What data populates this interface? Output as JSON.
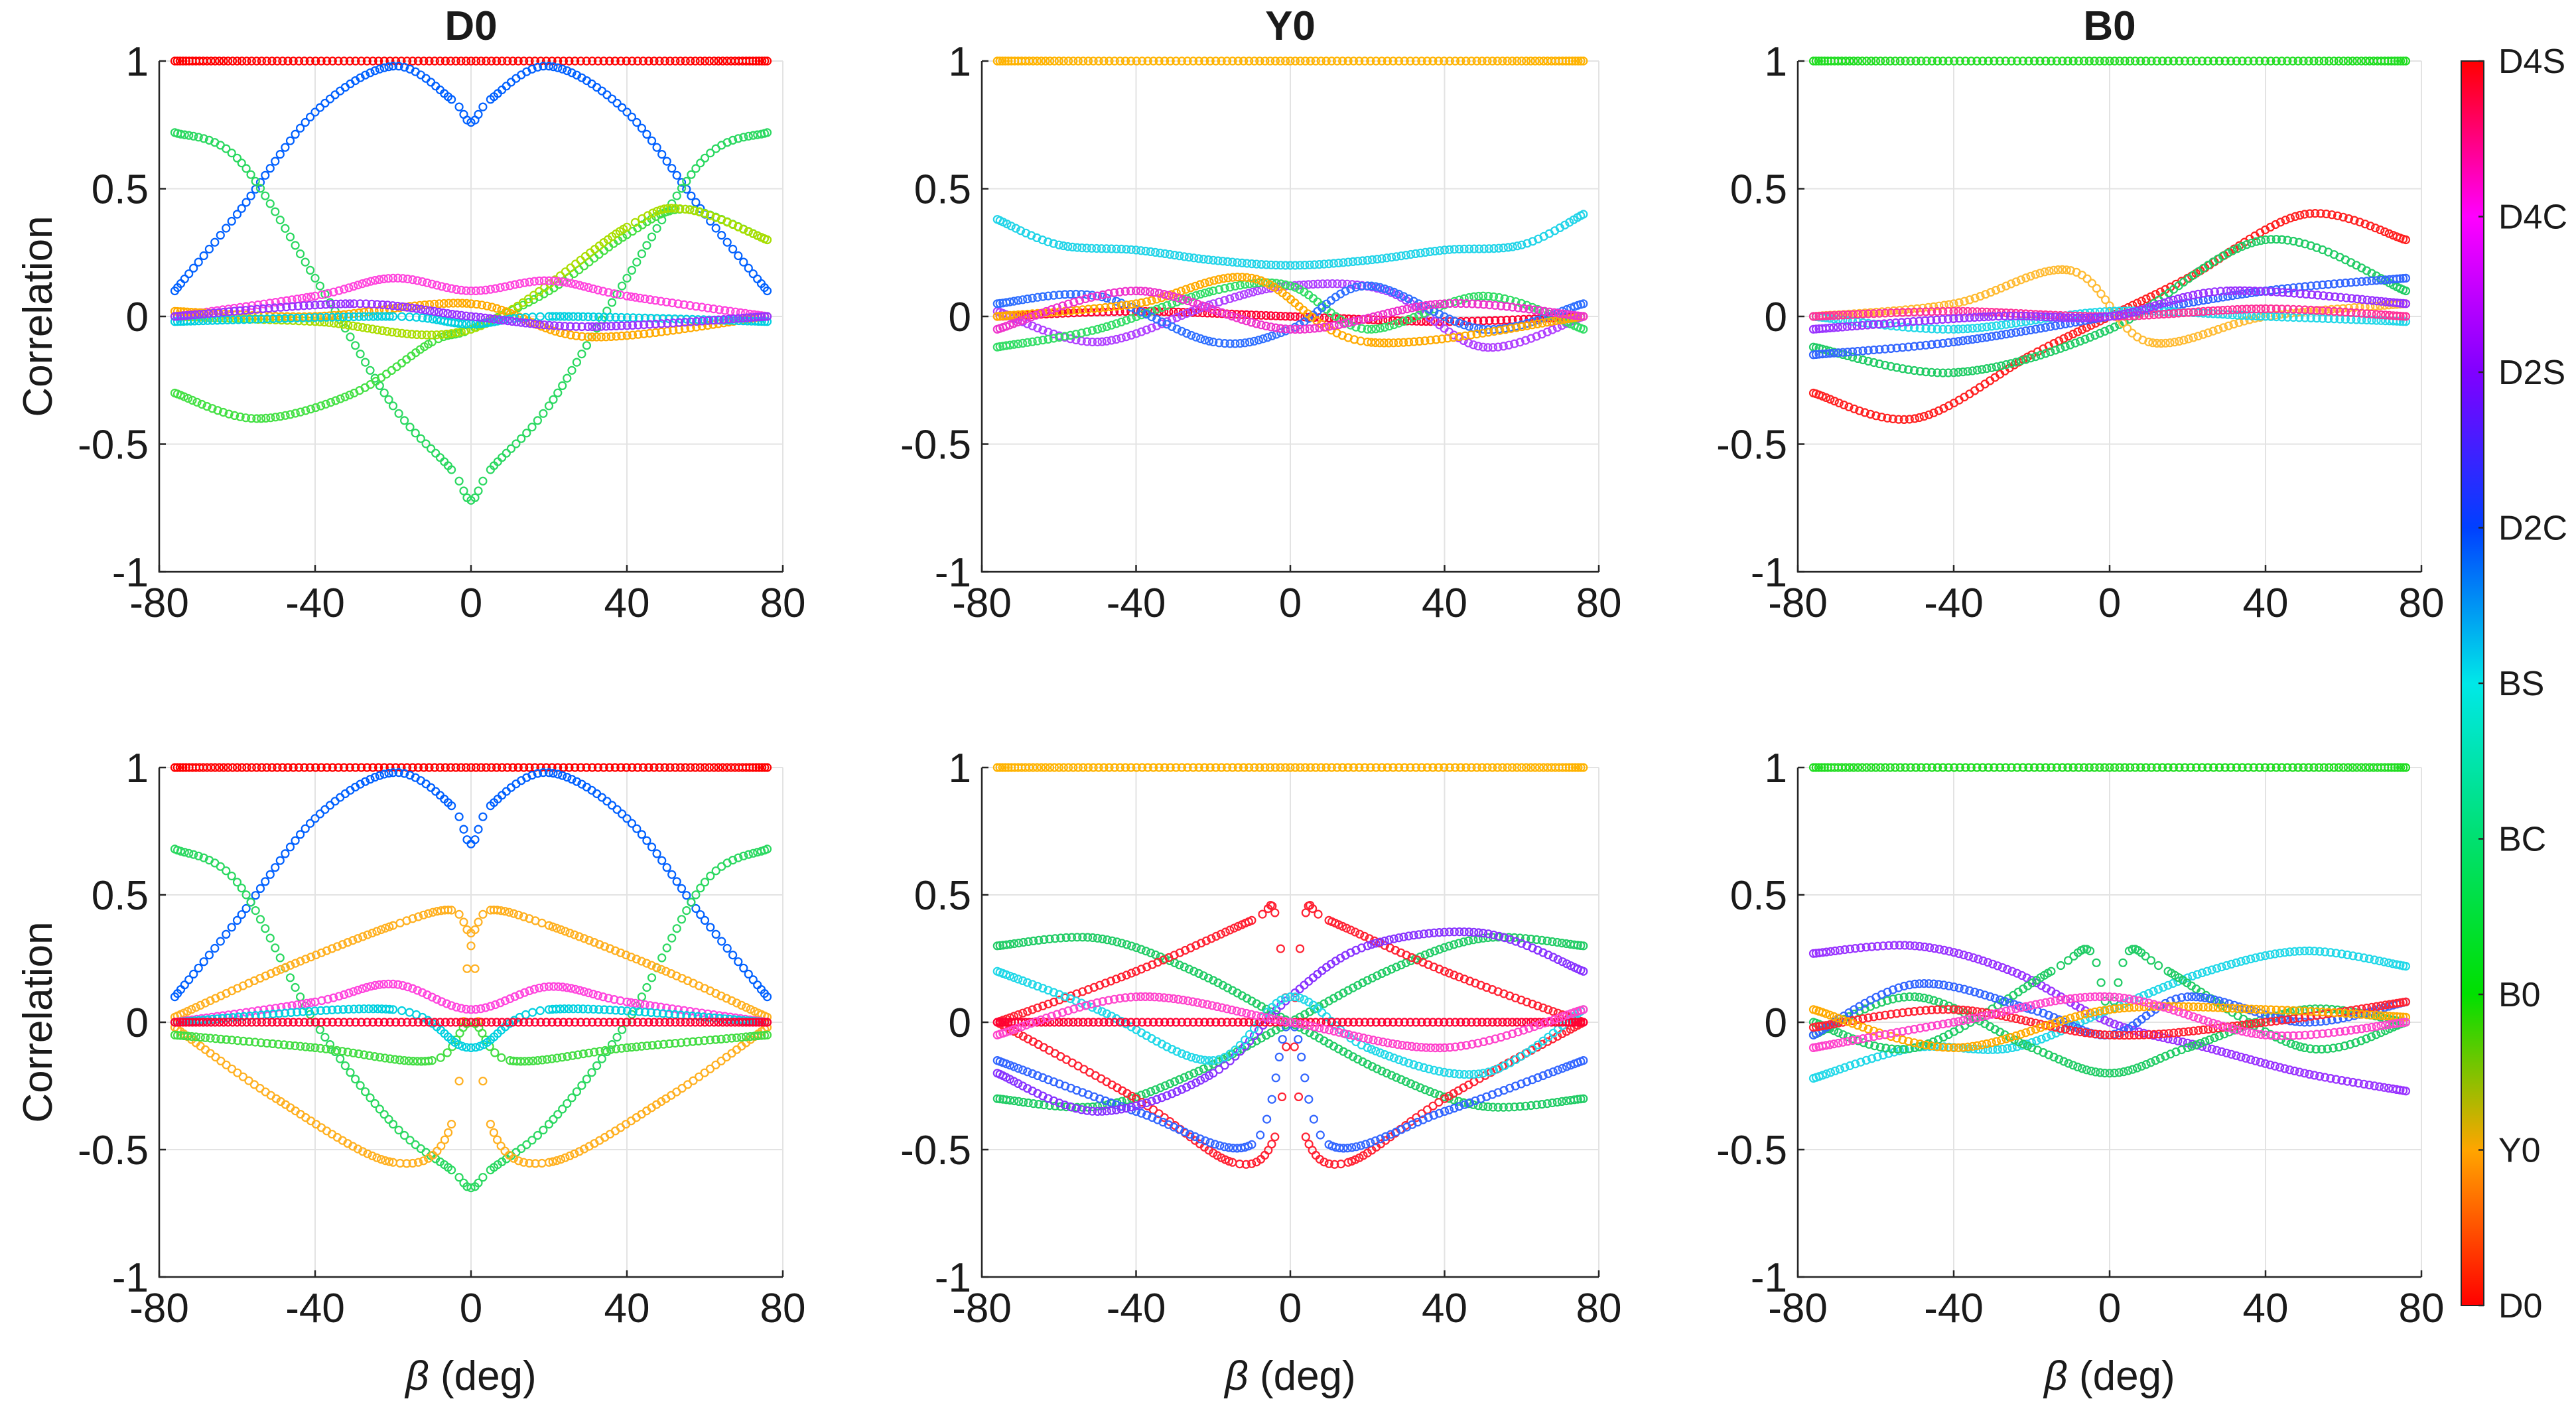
{
  "colorbar": {
    "labels": [
      "D0",
      "Y0",
      "B0",
      "BC",
      "BS",
      "D2C",
      "D2S",
      "D4C",
      "D4S"
    ],
    "colors": [
      "#ff0000",
      "#ffa500",
      "#00e000",
      "#00e070",
      "#00e8e8",
      "#0040ff",
      "#8000ff",
      "#ff00ff",
      "#ff0000"
    ]
  },
  "chart_data": [
    {
      "type": "scatter",
      "title": "D0",
      "ylabel": "Correlation",
      "xlabel": "",
      "xlim": [
        -80,
        80
      ],
      "ylim": [
        -1,
        1
      ],
      "xticks": [
        -80,
        -40,
        0,
        40,
        80
      ],
      "yticks": [
        -1,
        -0.5,
        0,
        0.5,
        1
      ],
      "grid": true,
      "series": [
        {
          "color": "#ff0000",
          "x": [
            -76,
            0,
            76
          ],
          "y": [
            1,
            1,
            1
          ]
        },
        {
          "color": "#0060ff",
          "x": [
            -76,
            -60,
            -40,
            -20,
            -5,
            0,
            5,
            20,
            40,
            60,
            76
          ],
          "y": [
            0.1,
            0.4,
            0.8,
            0.98,
            0.85,
            0.76,
            0.85,
            0.98,
            0.8,
            0.4,
            0.1
          ]
        },
        {
          "color": "#2ad860",
          "x": [
            -76,
            -60,
            -40,
            -20,
            -5,
            0,
            5,
            20,
            40,
            60,
            76
          ],
          "y": [
            0.72,
            0.62,
            0.15,
            -0.35,
            -0.6,
            -0.72,
            -0.6,
            -0.35,
            0.15,
            0.62,
            0.72
          ]
        },
        {
          "color": "#44e044",
          "x": [
            -76,
            -55,
            -30,
            -10,
            0,
            20,
            40,
            55,
            76
          ],
          "y": [
            -0.3,
            -0.4,
            -0.3,
            -0.1,
            -0.05,
            0.1,
            0.32,
            0.42,
            0.3
          ]
        },
        {
          "color": "#aadd00",
          "x": [
            -76,
            -40,
            0,
            40,
            55,
            76
          ],
          "y": [
            0,
            -0.02,
            -0.05,
            0.35,
            0.42,
            0.3
          ]
        },
        {
          "color": "#ff44dd",
          "x": [
            -76,
            -40,
            -20,
            0,
            20,
            40,
            76
          ],
          "y": [
            0,
            0.08,
            0.15,
            0.1,
            0.14,
            0.08,
            0
          ]
        },
        {
          "color": "#ffaa00",
          "x": [
            -76,
            -40,
            0,
            30,
            76
          ],
          "y": [
            0.02,
            0,
            0.05,
            -0.08,
            0
          ]
        },
        {
          "color": "#00d0e0",
          "x": [
            -76,
            -20,
            0,
            20,
            76
          ],
          "y": [
            -0.02,
            0,
            -0.03,
            0,
            -0.02
          ]
        },
        {
          "color": "#9933ff",
          "x": [
            -76,
            -30,
            0,
            30,
            76
          ],
          "y": [
            0,
            0.05,
            0,
            -0.04,
            0
          ]
        }
      ]
    },
    {
      "type": "scatter",
      "title": "Y0",
      "ylabel": "",
      "xlabel": "",
      "xlim": [
        -80,
        80
      ],
      "ylim": [
        -1,
        1
      ],
      "xticks": [
        -80,
        -40,
        0,
        40,
        80
      ],
      "yticks": [
        -1,
        -0.5,
        0,
        0.5,
        1
      ],
      "grid": true,
      "series": [
        {
          "color": "#ffb300",
          "x": [
            -76,
            0,
            76
          ],
          "y": [
            1,
            1,
            1
          ]
        },
        {
          "color": "#22d4e8",
          "x": [
            -76,
            -60,
            -40,
            -20,
            0,
            20,
            40,
            60,
            76
          ],
          "y": [
            0.38,
            0.28,
            0.26,
            0.22,
            0.2,
            0.22,
            0.26,
            0.28,
            0.4
          ]
        },
        {
          "color": "#ff0033",
          "x": [
            -76,
            -40,
            0,
            40,
            76
          ],
          "y": [
            0,
            0.02,
            0,
            -0.02,
            0
          ]
        },
        {
          "color": "#b040ff",
          "x": [
            -76,
            -50,
            -20,
            0,
            25,
            50,
            76
          ],
          "y": [
            0.02,
            -0.1,
            0.05,
            0.12,
            0.1,
            -0.12,
            0
          ]
        },
        {
          "color": "#33dd66",
          "x": [
            -76,
            -50,
            -20,
            0,
            20,
            50,
            76
          ],
          "y": [
            -0.12,
            -0.05,
            0.1,
            0.12,
            -0.05,
            0.08,
            -0.05
          ]
        },
        {
          "color": "#3070ff",
          "x": [
            -76,
            -50,
            -20,
            0,
            20,
            50,
            76
          ],
          "y": [
            0.05,
            0.08,
            -0.1,
            -0.05,
            0.12,
            -0.05,
            0.05
          ]
        },
        {
          "color": "#ffaa00",
          "x": [
            -76,
            -40,
            -10,
            20,
            76
          ],
          "y": [
            0,
            0.05,
            0.15,
            -0.1,
            0
          ]
        },
        {
          "color": "#ee33cc",
          "x": [
            -76,
            -40,
            0,
            40,
            76
          ],
          "y": [
            -0.05,
            0.1,
            -0.05,
            0.05,
            0
          ]
        }
      ]
    },
    {
      "type": "scatter",
      "title": "B0",
      "ylabel": "",
      "xlabel": "",
      "xlim": [
        -80,
        80
      ],
      "ylim": [
        -1,
        1
      ],
      "xticks": [
        -80,
        -40,
        0,
        40,
        80
      ],
      "yticks": [
        -1,
        -0.5,
        0,
        0.5,
        1
      ],
      "grid": true,
      "series": [
        {
          "color": "#22dd22",
          "x": [
            -76,
            0,
            76
          ],
          "y": [
            1,
            1,
            1
          ]
        },
        {
          "color": "#ff2222",
          "x": [
            -76,
            -50,
            -20,
            0,
            20,
            50,
            76
          ],
          "y": [
            -0.3,
            -0.4,
            -0.15,
            0,
            0.15,
            0.4,
            0.3
          ]
        },
        {
          "color": "#22cc66",
          "x": [
            -76,
            -40,
            0,
            40,
            76
          ],
          "y": [
            -0.12,
            -0.22,
            -0.05,
            0.3,
            0.1
          ]
        },
        {
          "color": "#ffbb33",
          "x": [
            -76,
            -40,
            -10,
            10,
            40,
            76
          ],
          "y": [
            0,
            0.05,
            0.18,
            -0.1,
            0,
            0.05
          ]
        },
        {
          "color": "#3366ff",
          "x": [
            -76,
            -40,
            0,
            40,
            76
          ],
          "y": [
            -0.15,
            -0.1,
            0,
            0.1,
            0.15
          ]
        },
        {
          "color": "#22d8e8",
          "x": [
            -76,
            -40,
            0,
            40,
            76
          ],
          "y": [
            0,
            -0.05,
            0.02,
            0,
            -0.02
          ]
        },
        {
          "color": "#ff3399",
          "x": [
            -76,
            -40,
            0,
            40,
            76
          ],
          "y": [
            0,
            0.02,
            0,
            0.03,
            0
          ]
        },
        {
          "color": "#9933ff",
          "x": [
            -76,
            -30,
            0,
            30,
            76
          ],
          "y": [
            -0.05,
            0,
            0,
            0.1,
            0.05
          ]
        }
      ]
    },
    {
      "type": "scatter",
      "title": "",
      "ylabel": "Correlation",
      "xlabel": "β (deg)",
      "xlim": [
        -80,
        80
      ],
      "ylim": [
        -1,
        1
      ],
      "xticks": [
        -80,
        -40,
        0,
        40,
        80
      ],
      "yticks": [
        -1,
        -0.5,
        0,
        0.5,
        1
      ],
      "grid": true,
      "series": [
        {
          "color": "#ff0000",
          "x": [
            -76,
            0,
            76
          ],
          "y": [
            1,
            1,
            1
          ]
        },
        {
          "color": "#0060ff",
          "x": [
            -76,
            -60,
            -40,
            -20,
            -5,
            0,
            5,
            20,
            40,
            60,
            76
          ],
          "y": [
            0.1,
            0.4,
            0.8,
            0.98,
            0.85,
            0.7,
            0.85,
            0.98,
            0.8,
            0.4,
            0.1
          ]
        },
        {
          "color": "#2ad860",
          "x": [
            -76,
            -60,
            -40,
            -20,
            -5,
            0,
            5,
            20,
            40,
            60,
            76
          ],
          "y": [
            0.68,
            0.55,
            0,
            -0.4,
            -0.58,
            -0.65,
            -0.58,
            -0.4,
            0,
            0.55,
            0.68
          ]
        },
        {
          "color": "#ffb020",
          "x": [
            -76,
            -50,
            -20,
            -5,
            0,
            5,
            20,
            50,
            76
          ],
          "y": [
            -0.02,
            -0.3,
            -0.55,
            -0.4,
            0.3,
            -0.4,
            -0.55,
            -0.3,
            -0.02
          ]
        },
        {
          "color": "#ffb020",
          "x": [
            -76,
            -50,
            -20,
            -5,
            0,
            5,
            20,
            50,
            76
          ],
          "y": [
            0.02,
            0.2,
            0.38,
            0.44,
            0.35,
            0.44,
            0.38,
            0.2,
            0.02
          ]
        },
        {
          "color": "#ff44dd",
          "x": [
            -76,
            -40,
            -20,
            0,
            20,
            40,
            76
          ],
          "y": [
            0,
            0.08,
            0.15,
            0.05,
            0.14,
            0.08,
            0
          ]
        },
        {
          "color": "#44dd44",
          "x": [
            -76,
            -40,
            -10,
            0,
            10,
            40,
            76
          ],
          "y": [
            -0.05,
            -0.1,
            -0.15,
            0,
            -0.15,
            -0.1,
            -0.05
          ]
        },
        {
          "color": "#00d0e0",
          "x": [
            -76,
            -20,
            0,
            20,
            76
          ],
          "y": [
            0,
            0.05,
            -0.1,
            0.05,
            0
          ]
        },
        {
          "color": "#ff0033",
          "x": [
            -76,
            0,
            76
          ],
          "y": [
            0,
            0,
            0
          ]
        }
      ]
    },
    {
      "type": "scatter",
      "title": "",
      "ylabel": "",
      "xlabel": "β (deg)",
      "xlim": [
        -80,
        80
      ],
      "ylim": [
        -1,
        1
      ],
      "xticks": [
        -80,
        -40,
        0,
        40,
        80
      ],
      "yticks": [
        -1,
        -0.5,
        0,
        0.5,
        1
      ],
      "grid": true,
      "series": [
        {
          "color": "#ffb300",
          "x": [
            -76,
            0,
            76
          ],
          "y": [
            1,
            1,
            1
          ]
        },
        {
          "color": "#22cc66",
          "x": [
            -76,
            -50,
            -25,
            0,
            25,
            50,
            76
          ],
          "y": [
            0.3,
            0.33,
            0.2,
            0,
            -0.2,
            -0.33,
            -0.3
          ]
        },
        {
          "color": "#22cc66",
          "x": [
            -76,
            -50,
            -25,
            0,
            25,
            50,
            76
          ],
          "y": [
            -0.3,
            -0.33,
            -0.2,
            0,
            0.2,
            0.33,
            0.3
          ]
        },
        {
          "color": "#ff2233",
          "x": [
            -76,
            -40,
            -10,
            -4,
            0,
            4,
            10,
            40,
            76
          ],
          "y": [
            0,
            0.2,
            0.4,
            0.43,
            0,
            0.43,
            0.4,
            0.2,
            0
          ]
        },
        {
          "color": "#ff2233",
          "x": [
            -76,
            -40,
            -15,
            -4,
            0,
            4,
            15,
            40,
            76
          ],
          "y": [
            0,
            -0.3,
            -0.55,
            -0.45,
            0,
            -0.45,
            -0.55,
            -0.3,
            0
          ]
        },
        {
          "color": "#3366ff",
          "x": [
            -76,
            -40,
            -10,
            0,
            10,
            40,
            76
          ],
          "y": [
            -0.15,
            -0.35,
            -0.48,
            0,
            -0.48,
            -0.35,
            -0.15
          ]
        },
        {
          "color": "#8833ff",
          "x": [
            -76,
            -50,
            -20,
            0,
            20,
            50,
            76
          ],
          "y": [
            -0.2,
            -0.35,
            -0.2,
            0.1,
            0.3,
            0.35,
            0.2
          ]
        },
        {
          "color": "#22d8e8",
          "x": [
            -76,
            -50,
            -20,
            0,
            20,
            50,
            76
          ],
          "y": [
            0.2,
            0.05,
            -0.15,
            0.1,
            -0.1,
            -0.2,
            0.05
          ]
        },
        {
          "color": "#ff0033",
          "x": [
            -76,
            0,
            76
          ],
          "y": [
            0,
            0,
            0
          ]
        },
        {
          "color": "#ff44cc",
          "x": [
            -76,
            -40,
            0,
            40,
            76
          ],
          "y": [
            -0.05,
            0.1,
            0,
            -0.1,
            0.05
          ]
        }
      ]
    },
    {
      "type": "scatter",
      "title": "",
      "ylabel": "",
      "xlabel": "β (deg)",
      "xlim": [
        -80,
        80
      ],
      "ylim": [
        -1,
        1
      ],
      "xticks": [
        -80,
        -40,
        0,
        40,
        80
      ],
      "yticks": [
        -1,
        -0.5,
        0,
        0.5,
        1
      ],
      "grid": true,
      "series": [
        {
          "color": "#22dd22",
          "x": [
            -76,
            0,
            76
          ],
          "y": [
            1,
            1,
            1
          ]
        },
        {
          "color": "#9933ff",
          "x": [
            -76,
            -50,
            -25,
            0,
            25,
            50,
            76
          ],
          "y": [
            0.27,
            0.3,
            0.2,
            0,
            -0.1,
            -0.2,
            -0.27
          ]
        },
        {
          "color": "#22d8e8",
          "x": [
            -76,
            -50,
            -25,
            0,
            25,
            50,
            76
          ],
          "y": [
            -0.22,
            -0.1,
            -0.1,
            0.05,
            0.2,
            0.28,
            0.22
          ]
        },
        {
          "color": "#22cc66",
          "x": [
            -76,
            -50,
            -15,
            -5,
            0,
            5,
            15,
            50,
            76
          ],
          "y": [
            0,
            -0.1,
            0.2,
            0.28,
            0.05,
            0.28,
            0.2,
            -0.1,
            0
          ]
        },
        {
          "color": "#22cc66",
          "x": [
            -76,
            -50,
            -20,
            0,
            20,
            50,
            76
          ],
          "y": [
            -0.05,
            0.1,
            -0.1,
            -0.2,
            -0.1,
            0.05,
            0
          ]
        },
        {
          "color": "#3366ff",
          "x": [
            -76,
            -50,
            -20,
            0,
            20,
            50,
            76
          ],
          "y": [
            -0.05,
            0.15,
            0.05,
            -0.05,
            0.1,
            0,
            0.08
          ]
        },
        {
          "color": "#ff2233",
          "x": [
            -76,
            -40,
            0,
            40,
            76
          ],
          "y": [
            -0.02,
            0.05,
            -0.05,
            0,
            0.08
          ]
        },
        {
          "color": "#ffaa00",
          "x": [
            -76,
            -40,
            0,
            40,
            76
          ],
          "y": [
            0.05,
            -0.1,
            0.05,
            0.05,
            0.02
          ]
        },
        {
          "color": "#ff44cc",
          "x": [
            -76,
            -40,
            0,
            40,
            76
          ],
          "y": [
            -0.1,
            0,
            0.1,
            -0.05,
            0
          ]
        }
      ]
    }
  ]
}
